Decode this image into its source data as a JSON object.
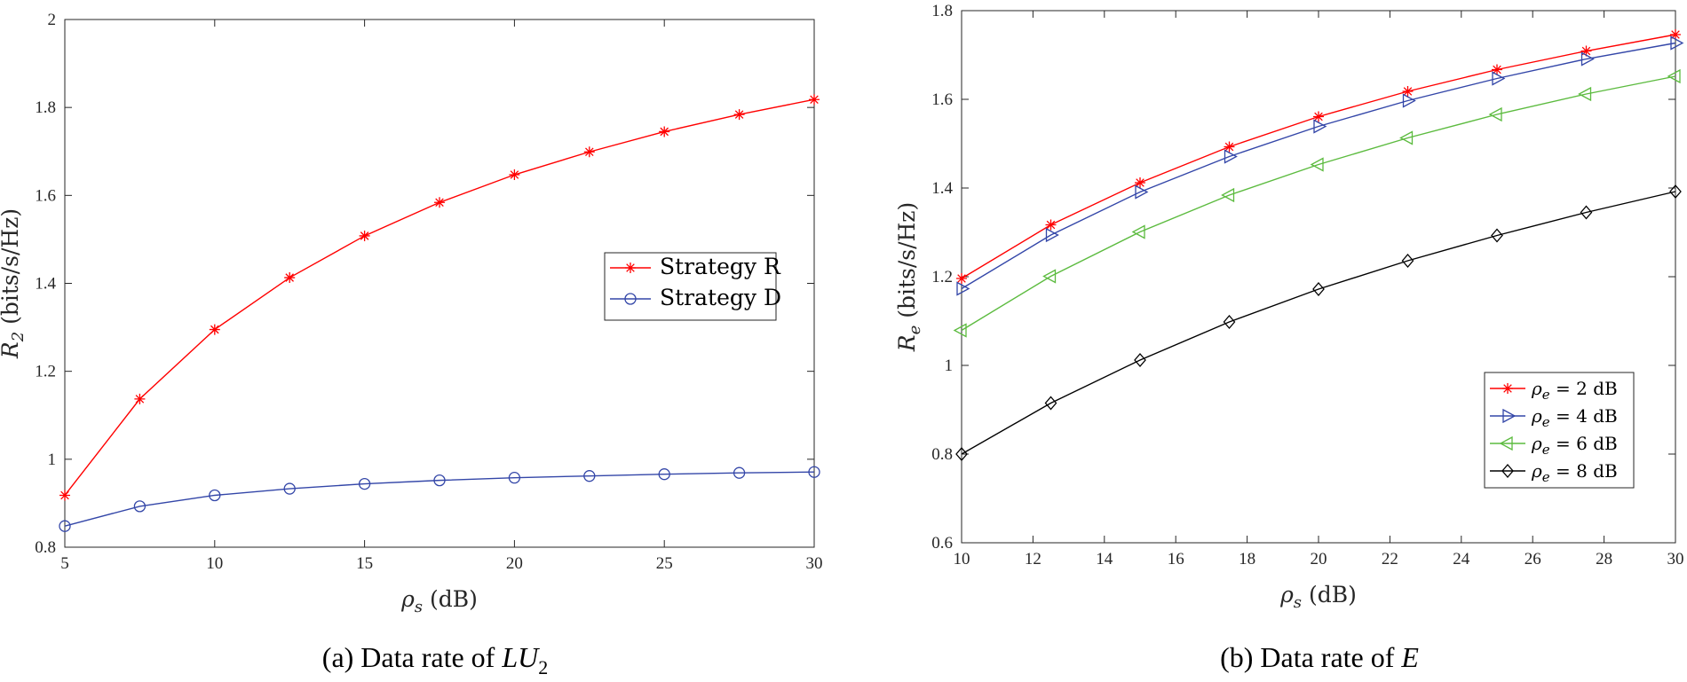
{
  "chart_data": [
    {
      "type": "line",
      "caption": {
        "prefix": "(a)",
        "text": "Data rate of ",
        "var": "LU",
        "sub": "2"
      },
      "xlabel": {
        "sym": "ρ",
        "sub": "s",
        "unit": "(dB)"
      },
      "ylabel": {
        "sym": "R",
        "sub": "2",
        "unit": "(bits/s/Hz)"
      },
      "xlim": [
        5,
        30
      ],
      "ylim": [
        0.8,
        2
      ],
      "xticks": [
        5,
        10,
        15,
        20,
        25,
        30
      ],
      "xtick_labels": [
        "5",
        "10",
        "15",
        "20",
        "25",
        "30"
      ],
      "yticks": [
        0.8,
        1,
        1.2,
        1.4,
        1.6,
        1.8,
        2
      ],
      "ytick_labels": [
        "0.8",
        "1",
        "1.2",
        "1.4",
        "1.6",
        "1.8",
        "2"
      ],
      "x": [
        5,
        7.5,
        10,
        12.5,
        15,
        17.5,
        20,
        22.5,
        25,
        27.5,
        30
      ],
      "legend_position": "right-middle",
      "series": [
        {
          "name": "Strategy R",
          "color": "#ff0000",
          "marker": "star",
          "values": [
            0.918,
            1.137,
            1.295,
            1.413,
            1.508,
            1.584,
            1.647,
            1.699,
            1.745,
            1.784,
            1.818
          ]
        },
        {
          "name": "Strategy D",
          "color": "#3346a8",
          "marker": "circle",
          "values": [
            0.848,
            0.893,
            0.918,
            0.933,
            0.944,
            0.952,
            0.958,
            0.962,
            0.966,
            0.969,
            0.971
          ]
        }
      ]
    },
    {
      "type": "line",
      "caption": {
        "prefix": "(b)",
        "text": "Data rate of ",
        "var": "E",
        "sub": ""
      },
      "xlabel": {
        "sym": "ρ",
        "sub": "s",
        "unit": "(dB)"
      },
      "ylabel": {
        "sym": "R",
        "sub": "e",
        "unit": "(bits/s/Hz)"
      },
      "xlim": [
        10,
        30
      ],
      "ylim": [
        0.6,
        1.8
      ],
      "xticks": [
        10,
        12,
        14,
        16,
        18,
        20,
        22,
        24,
        26,
        28,
        30
      ],
      "xtick_labels": [
        "10",
        "12",
        "14",
        "16",
        "18",
        "20",
        "22",
        "24",
        "26",
        "28",
        "30"
      ],
      "yticks": [
        0.6,
        0.8,
        1,
        1.2,
        1.4,
        1.6,
        1.8
      ],
      "ytick_labels": [
        "0.6",
        "0.8",
        "1",
        "1.2",
        "1.4",
        "1.6",
        "1.8"
      ],
      "x": [
        10,
        12.5,
        15,
        17.5,
        20,
        22.5,
        25,
        27.5,
        30
      ],
      "legend_position": "bottom-right",
      "series": [
        {
          "name": "ρe = 2 dB",
          "sym": "ρ",
          "sub": "e",
          "rest": " = 2 dB",
          "color": "#ff0000",
          "marker": "star",
          "values": [
            1.196,
            1.317,
            1.412,
            1.493,
            1.561,
            1.618,
            1.667,
            1.709,
            1.746
          ]
        },
        {
          "name": "ρe = 4 dB",
          "sym": "ρ",
          "sub": "e",
          "rest": " = 4 dB",
          "color": "#3346a8",
          "marker": "triangle-right",
          "values": [
            1.173,
            1.294,
            1.391,
            1.471,
            1.539,
            1.597,
            1.647,
            1.691,
            1.727
          ]
        },
        {
          "name": "ρe = 6 dB",
          "sym": "ρ",
          "sub": "e",
          "rest": " = 6 dB",
          "color": "#5cbb3f",
          "marker": "triangle-left",
          "values": [
            1.079,
            1.201,
            1.301,
            1.384,
            1.453,
            1.513,
            1.566,
            1.612,
            1.652
          ]
        },
        {
          "name": "ρe = 8 dB",
          "sym": "ρ",
          "sub": "e",
          "rest": " = 8 dB",
          "color": "#000000",
          "marker": "diamond",
          "values": [
            0.8,
            0.915,
            1.012,
            1.098,
            1.172,
            1.236,
            1.293,
            1.345,
            1.392
          ]
        }
      ]
    }
  ]
}
